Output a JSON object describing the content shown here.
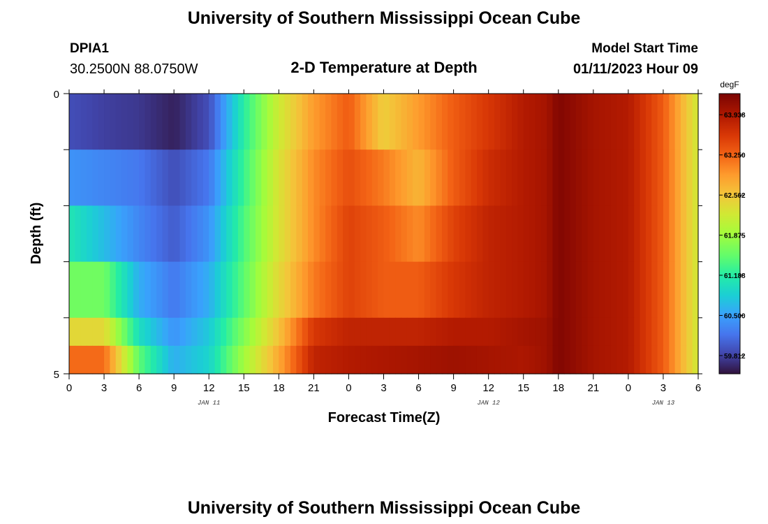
{
  "header": {
    "title": "University of Southern Mississippi Ocean Cube",
    "station_id": "DPIA1",
    "station_coords": "30.2500N  88.0750W",
    "plot_title": "2-D Temperature at Depth",
    "model_start_label": "Model Start Time",
    "model_start_value": "01/11/2023 Hour 09"
  },
  "footer": {
    "title": "University of Southern Mississippi Ocean Cube"
  },
  "chart_data": {
    "type": "heatmap",
    "title": "2-D Temperature at Depth",
    "xlabel": "Forecast Time(Z)",
    "ylabel": "Depth (ft)",
    "x_tick_labels": [
      "0",
      "3",
      "6",
      "9",
      "12",
      "15",
      "18",
      "21",
      "0",
      "3",
      "6",
      "9",
      "12",
      "15",
      "18",
      "21",
      "0",
      "3",
      "6"
    ],
    "date_labels": [
      "JAN 11",
      "JAN 12",
      "JAN 13"
    ],
    "y_tick_labels": [
      "0",
      "5"
    ],
    "ylim": [
      0,
      5
    ],
    "x_range_hours": [
      0,
      54
    ],
    "colorbar": {
      "unit": "degF",
      "ticks": [
        "63.938",
        "63.250",
        "62.562",
        "61.875",
        "61.188",
        "60.500",
        "59.812"
      ],
      "range": [
        59.5,
        64.3
      ]
    },
    "depth_layers": [
      "0-1 ft",
      "1-2 ft",
      "2-3 ft",
      "3-4 ft",
      "4-4.5 ft",
      "4.5-5 ft"
    ],
    "time_knots_hours": [
      0,
      3,
      6,
      9,
      12,
      15,
      18,
      21,
      24,
      27,
      30,
      33,
      36,
      39,
      41,
      42,
      45,
      48,
      51,
      54
    ],
    "temperature_degF": [
      [
        59.9,
        59.8,
        59.75,
        59.6,
        59.9,
        61.2,
        62.2,
        62.9,
        63.3,
        62.5,
        62.9,
        63.3,
        63.6,
        63.9,
        64.0,
        64.25,
        64.0,
        63.9,
        63.3,
        62.2
      ],
      [
        60.4,
        60.3,
        60.2,
        59.9,
        60.2,
        61.3,
        62.3,
        63.0,
        63.4,
        63.1,
        62.7,
        63.3,
        63.7,
        63.9,
        64.0,
        64.25,
        64.0,
        63.9,
        63.3,
        62.2
      ],
      [
        61.1,
        60.7,
        60.3,
        60.0,
        60.4,
        61.4,
        62.3,
        63.0,
        63.5,
        63.3,
        63.0,
        63.5,
        63.8,
        63.9,
        64.0,
        64.25,
        64.0,
        63.9,
        63.3,
        62.2
      ],
      [
        61.6,
        61.6,
        60.6,
        60.2,
        60.6,
        61.5,
        62.4,
        63.1,
        63.5,
        63.3,
        63.3,
        63.6,
        63.8,
        63.9,
        64.0,
        64.25,
        64.0,
        63.9,
        63.3,
        62.2
      ],
      [
        62.4,
        62.4,
        61.0,
        60.4,
        60.8,
        61.7,
        62.6,
        63.6,
        63.8,
        63.8,
        63.8,
        63.9,
        63.9,
        64.0,
        64.05,
        64.25,
        64.0,
        63.9,
        63.3,
        62.2
      ],
      [
        63.2,
        63.2,
        61.5,
        60.6,
        60.9,
        61.9,
        62.8,
        63.8,
        63.9,
        63.95,
        64.0,
        64.05,
        64.0,
        63.95,
        64.05,
        64.25,
        64.0,
        63.9,
        63.3,
        62.2
      ]
    ]
  }
}
